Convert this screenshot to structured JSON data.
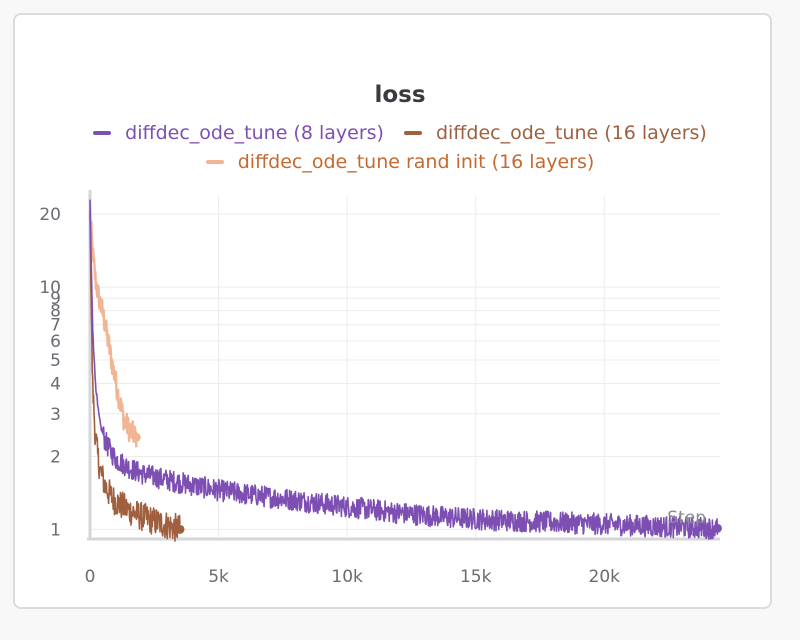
{
  "chart_data": {
    "type": "line",
    "title": "loss",
    "xlabel": "Step",
    "ylabel": "",
    "yscale": "log",
    "xlim": [
      0,
      24500
    ],
    "ylim": [
      0.93,
      24
    ],
    "grid": true,
    "legend_position": "top-center",
    "y_ticks": [
      1,
      2,
      3,
      4,
      5,
      6,
      7,
      8,
      9,
      10,
      20
    ],
    "y_tick_labels": [
      "1",
      "2",
      "3",
      "4",
      "5",
      "6",
      "7",
      "8",
      "9",
      "10",
      "20"
    ],
    "x_ticks": [
      0,
      5000,
      10000,
      15000,
      20000
    ],
    "x_tick_labels": [
      "0",
      "5k",
      "10k",
      "15k",
      "20k"
    ],
    "series": [
      {
        "name": "diffdec_ode_tune (8 layers)",
        "color": "#7e4fb3",
        "label_color": "#7e4fb3",
        "x": [
          0,
          50,
          100,
          200,
          300,
          400,
          600,
          800,
          1000,
          1500,
          2000,
          3000,
          4000,
          5000,
          6000,
          8000,
          10000,
          12000,
          14000,
          16000,
          18000,
          20000,
          22000,
          24400
        ],
        "y": [
          23,
          12,
          7,
          4.2,
          3.2,
          2.7,
          2.3,
          2.1,
          1.95,
          1.8,
          1.7,
          1.6,
          1.52,
          1.45,
          1.4,
          1.32,
          1.24,
          1.17,
          1.12,
          1.09,
          1.07,
          1.05,
          1.03,
          1.01
        ]
      },
      {
        "name": "diffdec_ode_tune (16 layers)",
        "color": "#a0603f",
        "label_color": "#a0603f",
        "x": [
          0,
          50,
          100,
          200,
          300,
          400,
          600,
          800,
          1000,
          1500,
          2000,
          2500,
          3000,
          3500
        ],
        "y": [
          20,
          8,
          4,
          2.5,
          2.0,
          1.75,
          1.5,
          1.38,
          1.3,
          1.2,
          1.13,
          1.08,
          1.04,
          1.0
        ]
      },
      {
        "name": "diffdec_ode_tune rand init (16 layers)",
        "color": "#f2b594",
        "label_color": "#c46a30",
        "x": [
          0,
          100,
          200,
          300,
          400,
          500,
          700,
          900,
          1100,
          1300,
          1500,
          1800
        ],
        "y": [
          20,
          14,
          11,
          9.5,
          8.5,
          7.8,
          6.0,
          4.6,
          3.6,
          2.9,
          2.6,
          2.4
        ]
      }
    ]
  }
}
